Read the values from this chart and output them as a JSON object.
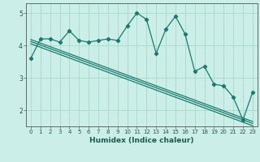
{
  "xlabel": "Humidex (Indice chaleur)",
  "bg_color": "#cceee8",
  "grid_color": "#aaddcc",
  "line_color": "#1a7a6e",
  "x_values": [
    0,
    1,
    2,
    3,
    4,
    5,
    6,
    7,
    8,
    9,
    10,
    11,
    12,
    13,
    14,
    15,
    16,
    17,
    18,
    19,
    20,
    21,
    22,
    23
  ],
  "y_main": [
    3.6,
    4.2,
    4.2,
    4.1,
    4.45,
    4.15,
    4.1,
    4.15,
    4.2,
    4.15,
    4.6,
    5.0,
    4.8,
    3.75,
    4.5,
    4.9,
    4.35,
    3.2,
    3.35,
    2.8,
    2.75,
    2.4,
    1.7,
    2.55
  ],
  "y_trend1": [
    4.05,
    3.94,
    3.83,
    3.72,
    3.61,
    3.5,
    3.39,
    3.28,
    3.17,
    3.06,
    2.95,
    2.84,
    2.73,
    2.62,
    2.51,
    2.4,
    2.29,
    2.18,
    2.07,
    1.96,
    1.85,
    1.74,
    1.63,
    1.52
  ],
  "y_trend2": [
    4.12,
    4.01,
    3.9,
    3.79,
    3.68,
    3.57,
    3.46,
    3.35,
    3.24,
    3.13,
    3.02,
    2.91,
    2.8,
    2.69,
    2.58,
    2.47,
    2.36,
    2.25,
    2.14,
    2.03,
    1.92,
    1.81,
    1.7,
    1.59
  ],
  "y_trend3": [
    4.18,
    4.07,
    3.96,
    3.85,
    3.74,
    3.63,
    3.52,
    3.41,
    3.3,
    3.19,
    3.08,
    2.97,
    2.86,
    2.75,
    2.64,
    2.53,
    2.42,
    2.31,
    2.2,
    2.09,
    1.98,
    1.87,
    1.76,
    1.65
  ],
  "xlim": [
    -0.5,
    23.5
  ],
  "ylim": [
    1.5,
    5.3
  ],
  "yticks": [
    2,
    3,
    4,
    5
  ],
  "xticks": [
    0,
    1,
    2,
    3,
    4,
    5,
    6,
    7,
    8,
    9,
    10,
    11,
    12,
    13,
    14,
    15,
    16,
    17,
    18,
    19,
    20,
    21,
    22,
    23
  ]
}
